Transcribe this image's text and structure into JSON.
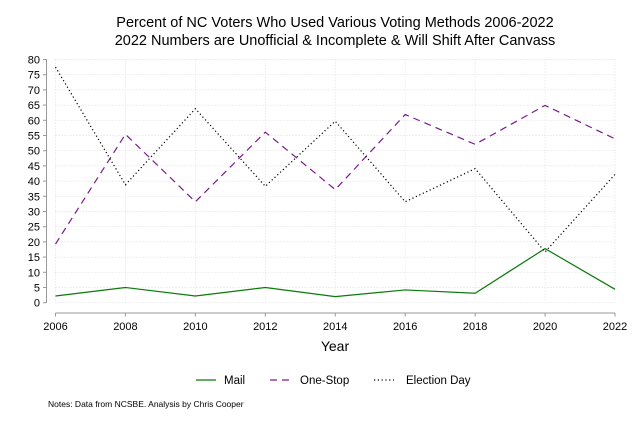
{
  "chart_data": {
    "type": "line",
    "title": "Percent of NC Voters Who Used Various Voting Methods 2006-2022",
    "subtitle": "2022 Numbers are Unofficial & Incomplete & Will Shift After Canvass",
    "xlabel": "Year",
    "ylabel": "",
    "x": [
      2006,
      2008,
      2010,
      2012,
      2014,
      2016,
      2018,
      2020,
      2022
    ],
    "xticks": [
      "2006",
      "2008",
      "2010",
      "2012",
      "2014",
      "2016",
      "2018",
      "2020",
      "2022"
    ],
    "yticks": [
      "0",
      "5",
      "10",
      "15",
      "20",
      "25",
      "30",
      "35",
      "40",
      "45",
      "50",
      "55",
      "60",
      "65",
      "70",
      "75",
      "80"
    ],
    "xlim": [
      2006,
      2022
    ],
    "ylim": [
      0,
      80
    ],
    "grid": true,
    "legend_position": "bottom",
    "series": [
      {
        "name": "Mail",
        "color": "#0a7a0a",
        "dash": "solid",
        "values": [
          2.2,
          5.0,
          2.2,
          5.0,
          2.0,
          4.2,
          3.1,
          17.8,
          4.4
        ]
      },
      {
        "name": "One-Stop",
        "color": "#7a1a8c",
        "dash": "dashed",
        "values": [
          19.3,
          55.4,
          33.2,
          56.1,
          37.2,
          61.9,
          52.1,
          64.9,
          53.9
        ]
      },
      {
        "name": "Election Day",
        "color": "#000000",
        "dash": "dotted",
        "values": [
          77.5,
          38.8,
          63.8,
          38.3,
          59.7,
          33.2,
          44.1,
          16.7,
          42.2
        ]
      }
    ],
    "notes": "Notes: Data from NCSBE. Analysis by Chris Cooper"
  }
}
